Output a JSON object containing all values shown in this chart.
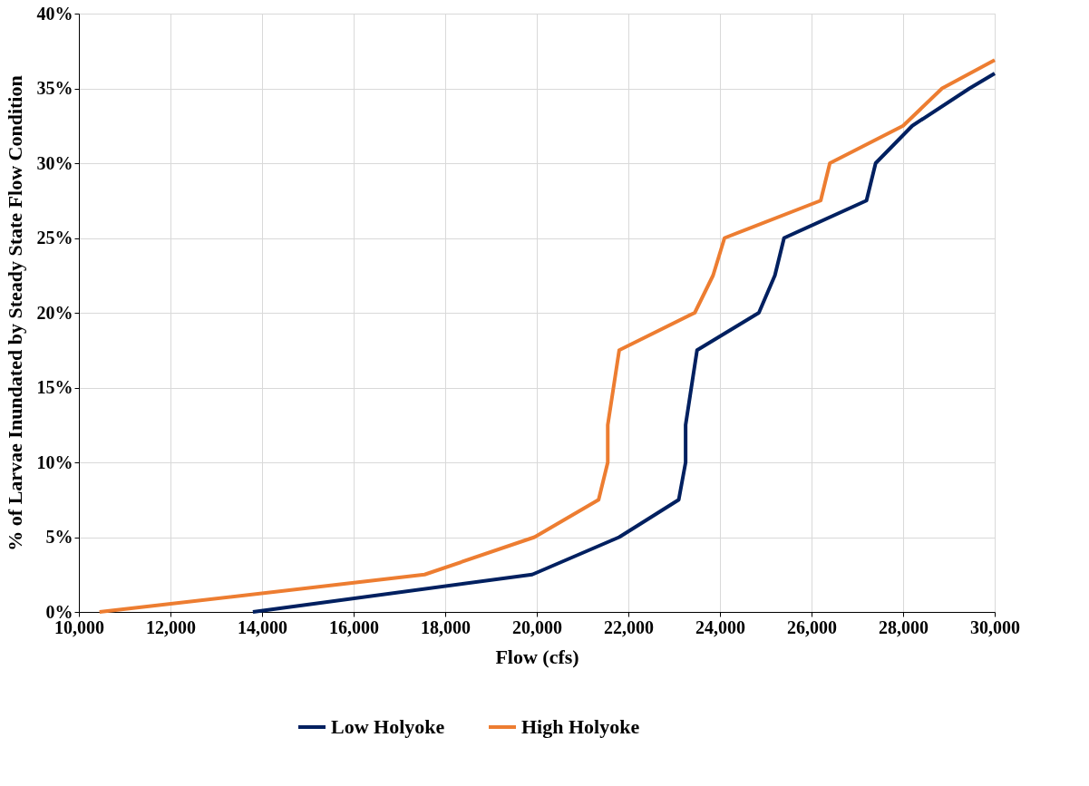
{
  "chart_data": {
    "type": "line",
    "xlabel": "Flow (cfs)",
    "ylabel": "% of Larvae Inundated by Steady State Flow Condition",
    "xlim": [
      10000,
      30000
    ],
    "ylim": [
      0,
      40
    ],
    "xticks": [
      {
        "value": 10000,
        "label": "10,000"
      },
      {
        "value": 12000,
        "label": "12,000"
      },
      {
        "value": 14000,
        "label": "14,000"
      },
      {
        "value": 16000,
        "label": "16,000"
      },
      {
        "value": 18000,
        "label": "18,000"
      },
      {
        "value": 20000,
        "label": "20,000"
      },
      {
        "value": 22000,
        "label": "22,000"
      },
      {
        "value": 24000,
        "label": "24,000"
      },
      {
        "value": 26000,
        "label": "26,000"
      },
      {
        "value": 28000,
        "label": "28,000"
      },
      {
        "value": 30000,
        "label": "30,000"
      }
    ],
    "yticks": [
      {
        "value": 0,
        "label": "0%"
      },
      {
        "value": 5,
        "label": "5%"
      },
      {
        "value": 10,
        "label": "10%"
      },
      {
        "value": 15,
        "label": "15%"
      },
      {
        "value": 20,
        "label": "20%"
      },
      {
        "value": 25,
        "label": "25%"
      },
      {
        "value": 30,
        "label": "30%"
      },
      {
        "value": 35,
        "label": "35%"
      },
      {
        "value": 40,
        "label": "40%"
      }
    ],
    "grid": true,
    "legend": "bottom",
    "line_style": "solid",
    "marker": "none",
    "series": [
      {
        "name": "Low Holyoke",
        "color": "#002060",
        "x": [
          13800,
          19900,
          21800,
          23100,
          23250,
          23250,
          23500,
          24850,
          25200,
          25400,
          27200,
          27400,
          28200,
          29450,
          30000
        ],
        "values": [
          0,
          2.5,
          5,
          7.5,
          10,
          12.5,
          17.5,
          20,
          22.5,
          25,
          27.5,
          30,
          32.5,
          35,
          36
        ]
      },
      {
        "name": "High Holyoke",
        "color": "#ed7d31",
        "x": [
          10450,
          17550,
          19950,
          21350,
          21550,
          21550,
          21800,
          23450,
          23850,
          24100,
          26200,
          26400,
          28000,
          28850,
          30000
        ],
        "values": [
          0,
          2.5,
          5,
          7.5,
          10,
          12.5,
          17.5,
          20,
          22.5,
          25,
          27.5,
          30,
          32.5,
          35,
          36.9
        ]
      }
    ]
  }
}
